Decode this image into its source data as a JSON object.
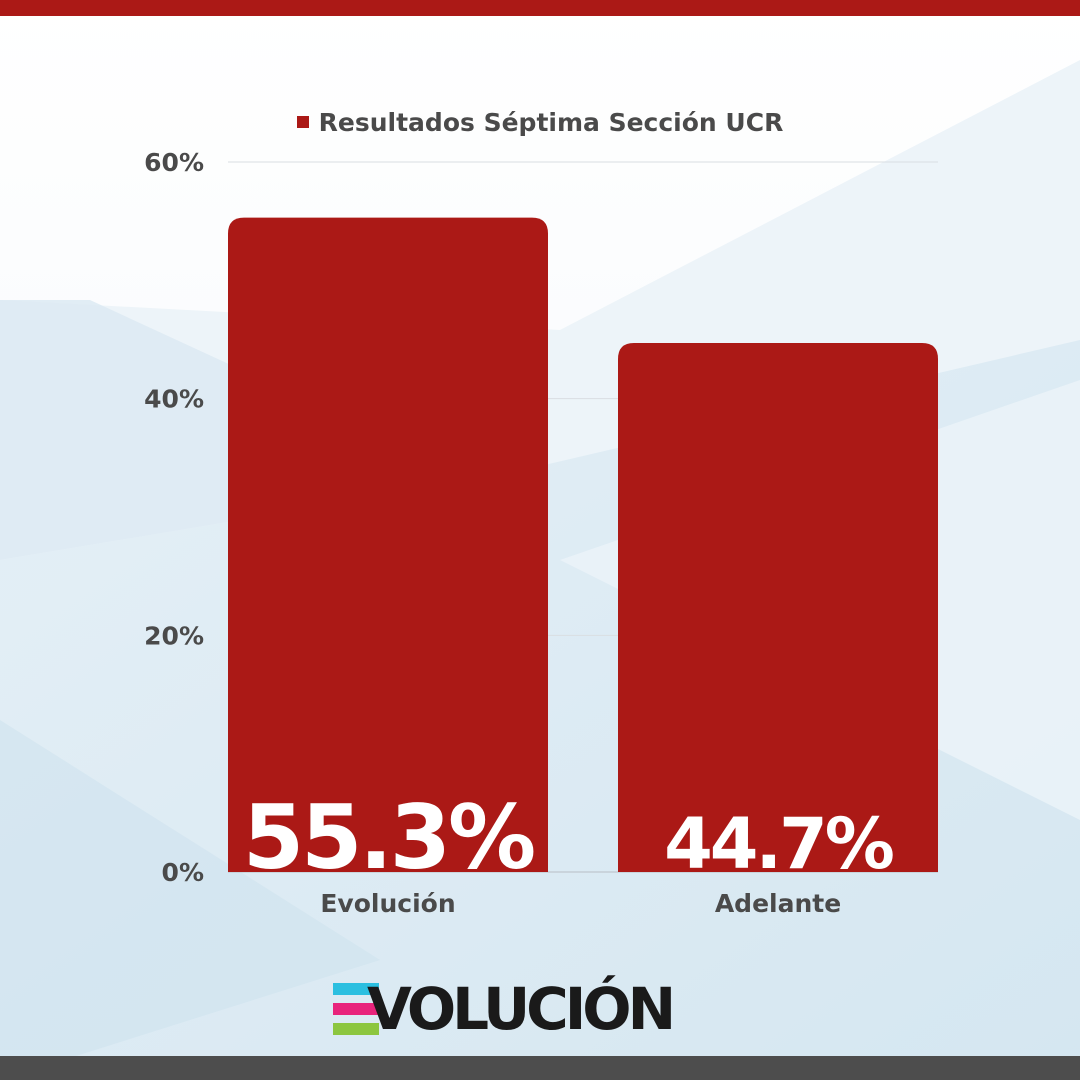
{
  "colors": {
    "accent": "#ab1916",
    "bottom_bar": "#4d4d4d",
    "axis_text": "#4a4a4a",
    "logo_cyan": "#2bbfe0",
    "logo_pink": "#e8247c",
    "logo_green": "#8cc63f"
  },
  "brand": {
    "wordmark": "VOLUCIÓN"
  },
  "chart_data": {
    "type": "bar",
    "title": "",
    "legend": "Resultados Séptima Sección UCR",
    "legend_position": "top-center",
    "categories": [
      "Evolución",
      "Adelante"
    ],
    "series": [
      {
        "name": "Resultados Séptima Sección UCR",
        "values": [
          55.3,
          44.7
        ]
      }
    ],
    "data_labels": [
      "55.3%",
      "44.7%"
    ],
    "y_ticks": [
      0,
      20,
      40,
      60
    ],
    "y_tick_labels": [
      "0%",
      "20%",
      "40%",
      "60%"
    ],
    "ylim": [
      0,
      60
    ],
    "xlabel": "",
    "ylabel": "",
    "grid": true
  }
}
